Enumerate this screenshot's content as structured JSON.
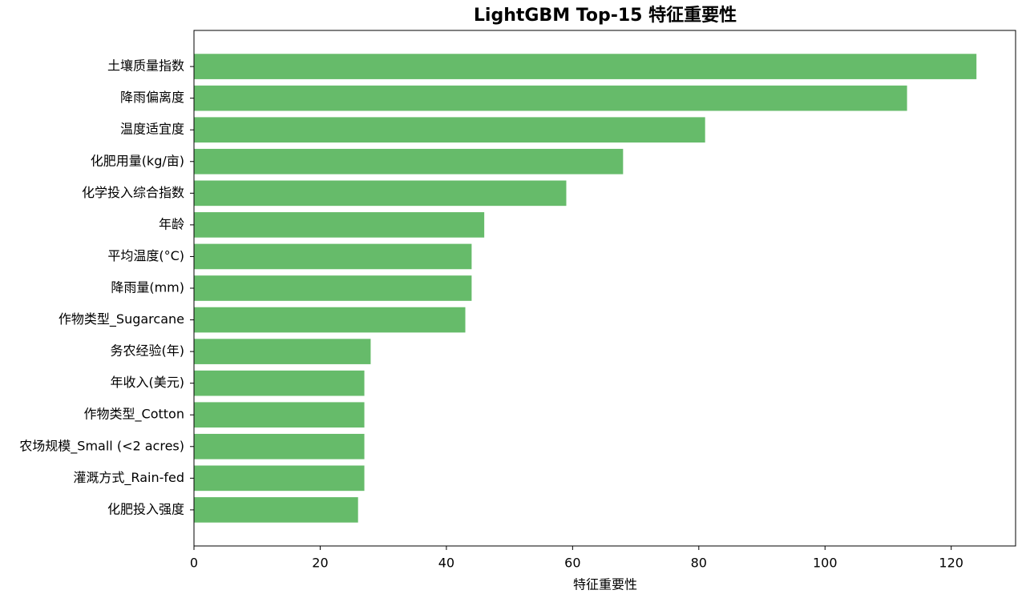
{
  "chart_data": {
    "type": "barh",
    "title": "LightGBM Top-15 特征重要性",
    "x_label": "特征重要性",
    "categories": [
      "土壤质量指数",
      "降雨偏离度",
      "温度适宜度",
      "化肥用量(kg/亩)",
      "化学投入综合指数",
      "年龄",
      "平均温度(°C)",
      "降雨量(mm)",
      "作物类型_Sugarcane",
      "务农经验(年)",
      "年收入(美元)",
      "作物类型_Cotton",
      "农场规模_Small (<2 acres)",
      "灌溉方式_Rain-fed",
      "化肥投入强度"
    ],
    "values": [
      124,
      113,
      81,
      68,
      59,
      46,
      44,
      44,
      43,
      28,
      27,
      27,
      27,
      27,
      26
    ],
    "color": "#66bb6a",
    "xlim": [
      0,
      130.2
    ],
    "xticks": [
      0,
      20,
      40,
      60,
      80,
      100,
      120
    ],
    "grid": false
  }
}
